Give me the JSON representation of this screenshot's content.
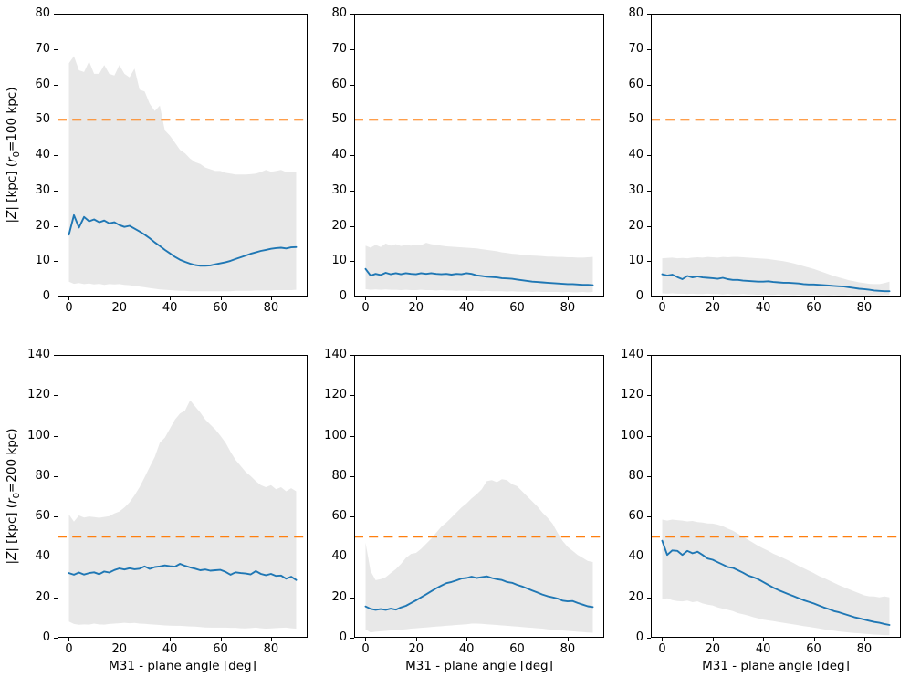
{
  "figure": {
    "background": "#ffffff",
    "colors": {
      "median": "#1f77b4",
      "reference": "#ff7f0e",
      "band": "#e8e8e8",
      "spine": "#000000",
      "text": "#000000"
    }
  },
  "chart_data": {
    "type": "line",
    "description": "2x3 grid of line charts with shaded uncertainty bands, blue median line and dashed orange reference line",
    "x_start": 0,
    "x_step": 2,
    "x_end": 90,
    "xlim": [
      -4.5,
      94.5
    ],
    "xticks": [
      0,
      20,
      40,
      60,
      80
    ],
    "xlabel": "M31 - plane angle [deg]",
    "reference_line_y": 50,
    "grid": false,
    "legend": "none",
    "rows": [
      {
        "ylabel_text": "|Z| [kpc] (r0=100 kpc)",
        "ylabel": [
          {
            "t": "|"
          },
          {
            "t": "Z",
            "style": "i"
          },
          {
            "t": "| [kpc] ("
          },
          {
            "t": "r",
            "style": "i"
          },
          {
            "t": "0",
            "style": "sub"
          },
          {
            "t": "=100 kpc)"
          }
        ],
        "ylim": [
          0,
          80
        ],
        "yticks": [
          0,
          10,
          20,
          30,
          40,
          50,
          60,
          70,
          80
        ]
      },
      {
        "ylabel_text": "|Z| [kpc] (r0=200 kpc)",
        "ylabel": [
          {
            "t": "|"
          },
          {
            "t": "Z",
            "style": "i"
          },
          {
            "t": "| [kpc] ("
          },
          {
            "t": "r",
            "style": "i"
          },
          {
            "t": "0",
            "style": "sub"
          },
          {
            "t": "=200 kpc)"
          }
        ],
        "ylim": [
          0,
          140
        ],
        "yticks": [
          0,
          20,
          40,
          60,
          80,
          100,
          120,
          140
        ]
      }
    ],
    "panels": [
      {
        "id": "r0c0",
        "row": 0,
        "col": 0,
        "median": [
          17.5,
          23.0,
          19.5,
          22.5,
          21.3,
          21.8,
          21.0,
          21.5,
          20.7,
          21.0,
          20.2,
          19.7,
          20.0,
          19.2,
          18.4,
          17.5,
          16.5,
          15.3,
          14.3,
          13.2,
          12.2,
          11.2,
          10.4,
          9.8,
          9.3,
          8.9,
          8.7,
          8.7,
          8.8,
          9.1,
          9.4,
          9.7,
          10.1,
          10.6,
          11.1,
          11.6,
          12.1,
          12.5,
          12.9,
          13.2,
          13.5,
          13.7,
          13.8,
          13.6,
          13.9,
          14.0
        ],
        "band_upper": [
          66.0,
          68.0,
          64.0,
          63.5,
          66.5,
          63.0,
          63.0,
          65.5,
          63.0,
          62.5,
          65.5,
          63.0,
          62.0,
          64.5,
          58.5,
          58.0,
          54.5,
          52.5,
          54.0,
          47.0,
          45.5,
          43.5,
          41.5,
          40.5,
          39.0,
          38.0,
          37.5,
          36.5,
          36.0,
          35.5,
          35.5,
          35.0,
          34.8,
          34.5,
          34.5,
          34.5,
          34.6,
          34.8,
          35.2,
          35.8,
          35.3,
          35.5,
          35.8,
          35.2,
          35.3,
          35.2
        ],
        "band_lower": [
          4.2,
          3.6,
          3.8,
          3.5,
          3.7,
          3.4,
          3.6,
          3.3,
          3.5,
          3.4,
          3.5,
          3.3,
          3.2,
          3.0,
          2.8,
          2.6,
          2.4,
          2.2,
          2.0,
          1.9,
          1.8,
          1.7,
          1.6,
          1.6,
          1.5,
          1.5,
          1.5,
          1.5,
          1.5,
          1.5,
          1.5,
          1.5,
          1.5,
          1.6,
          1.6,
          1.6,
          1.6,
          1.7,
          1.7,
          1.7,
          1.7,
          1.8,
          1.8,
          1.8,
          1.8,
          1.9
        ]
      },
      {
        "id": "r0c1",
        "row": 0,
        "col": 1,
        "median": [
          7.8,
          5.9,
          6.4,
          6.1,
          6.7,
          6.3,
          6.6,
          6.3,
          6.6,
          6.4,
          6.3,
          6.6,
          6.4,
          6.6,
          6.4,
          6.3,
          6.4,
          6.2,
          6.4,
          6.3,
          6.6,
          6.4,
          6.0,
          5.8,
          5.6,
          5.5,
          5.4,
          5.2,
          5.1,
          5.0,
          4.8,
          4.6,
          4.4,
          4.2,
          4.1,
          4.0,
          3.9,
          3.8,
          3.7,
          3.6,
          3.5,
          3.5,
          3.4,
          3.3,
          3.3,
          3.2
        ],
        "band_upper": [
          14.4,
          13.8,
          14.6,
          14.0,
          15.0,
          14.4,
          14.8,
          14.3,
          14.6,
          14.4,
          14.7,
          14.5,
          15.2,
          14.8,
          14.6,
          14.4,
          14.2,
          14.1,
          14.0,
          13.9,
          13.8,
          13.7,
          13.6,
          13.4,
          13.2,
          13.0,
          12.8,
          12.5,
          12.3,
          12.1,
          12.0,
          11.8,
          11.7,
          11.6,
          11.5,
          11.4,
          11.3,
          11.3,
          11.2,
          11.2,
          11.1,
          11.1,
          11.0,
          11.0,
          11.1,
          11.2
        ],
        "band_lower": [
          2.1,
          1.9,
          2.0,
          1.9,
          2.0,
          1.9,
          1.9,
          1.8,
          1.9,
          1.8,
          1.8,
          1.9,
          1.8,
          1.8,
          1.7,
          1.8,
          1.7,
          1.7,
          1.6,
          1.7,
          1.6,
          1.6,
          1.6,
          1.5,
          1.6,
          1.5,
          1.5,
          1.5,
          1.4,
          1.5,
          1.4,
          1.4,
          1.4,
          1.3,
          1.4,
          1.3,
          1.3,
          1.3,
          1.3,
          1.2,
          1.3,
          1.2,
          1.2,
          1.3,
          1.2,
          1.3
        ]
      },
      {
        "id": "r0c2",
        "row": 0,
        "col": 2,
        "median": [
          6.3,
          5.9,
          6.2,
          5.5,
          4.9,
          5.8,
          5.4,
          5.7,
          5.4,
          5.3,
          5.2,
          5.0,
          5.3,
          4.9,
          4.7,
          4.7,
          4.5,
          4.4,
          4.3,
          4.2,
          4.2,
          4.3,
          4.1,
          4.0,
          3.9,
          3.9,
          3.8,
          3.7,
          3.5,
          3.4,
          3.4,
          3.3,
          3.2,
          3.1,
          3.0,
          2.9,
          2.8,
          2.6,
          2.4,
          2.2,
          2.1,
          1.9,
          1.7,
          1.6,
          1.5,
          1.5
        ],
        "band_upper": [
          10.8,
          10.9,
          11.0,
          10.8,
          10.9,
          10.8,
          11.0,
          11.1,
          11.0,
          11.2,
          11.1,
          11.0,
          11.2,
          11.1,
          11.2,
          11.2,
          11.1,
          11.0,
          10.9,
          10.8,
          10.7,
          10.6,
          10.4,
          10.2,
          10.0,
          9.7,
          9.4,
          9.0,
          8.6,
          8.2,
          7.8,
          7.3,
          6.8,
          6.3,
          5.8,
          5.4,
          5.0,
          4.6,
          4.3,
          4.0,
          3.8,
          3.6,
          3.5,
          3.5,
          3.8,
          4.2
        ],
        "band_lower": [
          0.9,
          0.8,
          0.9,
          0.8,
          0.8,
          0.7,
          0.8,
          0.7,
          0.7,
          0.8,
          0.7,
          0.7,
          0.6,
          0.7,
          0.6,
          0.6,
          0.7,
          0.6,
          0.6,
          0.5,
          0.6,
          0.5,
          0.5,
          0.6,
          0.5,
          0.5,
          0.4,
          0.5,
          0.4,
          0.4,
          0.5,
          0.4,
          0.4,
          0.3,
          0.4,
          0.3,
          0.3,
          0.4,
          0.3,
          0.3,
          0.3,
          0.3,
          0.4,
          0.3,
          0.4,
          0.4
        ]
      },
      {
        "id": "r1c0",
        "row": 1,
        "col": 0,
        "median": [
          32.0,
          31.2,
          32.3,
          31.3,
          32.0,
          32.4,
          31.5,
          32.8,
          32.3,
          33.5,
          34.3,
          33.8,
          34.4,
          33.9,
          34.2,
          35.3,
          34.1,
          35.0,
          35.3,
          35.8,
          35.4,
          35.2,
          36.6,
          35.6,
          34.8,
          34.2,
          33.4,
          33.8,
          33.2,
          33.4,
          33.6,
          32.6,
          31.2,
          32.4,
          32.0,
          31.8,
          31.4,
          33.0,
          31.6,
          31.0,
          31.6,
          30.6,
          30.8,
          29.2,
          30.2,
          28.6
        ],
        "band_upper": [
          61.0,
          57.5,
          60.5,
          59.5,
          60.0,
          59.7,
          59.4,
          59.8,
          60.2,
          61.5,
          62.5,
          64.5,
          67.0,
          70.5,
          74.5,
          79.5,
          84.5,
          89.5,
          96.5,
          99.0,
          103.5,
          108.0,
          111.0,
          112.5,
          117.5,
          114.5,
          111.5,
          108.0,
          105.5,
          103.0,
          100.0,
          96.5,
          92.0,
          88.0,
          85.0,
          82.0,
          80.0,
          77.5,
          75.5,
          74.5,
          75.5,
          73.5,
          74.5,
          72.5,
          74.0,
          72.5
        ],
        "band_lower": [
          8.0,
          6.8,
          6.4,
          6.6,
          6.5,
          7.0,
          6.6,
          6.5,
          6.8,
          7.0,
          7.2,
          7.4,
          7.2,
          7.3,
          7.0,
          6.9,
          6.7,
          6.5,
          6.3,
          6.1,
          6.0,
          5.9,
          5.9,
          5.8,
          5.6,
          5.5,
          5.3,
          5.1,
          5.0,
          5.0,
          5.0,
          5.0,
          4.9,
          4.9,
          4.7,
          4.6,
          4.8,
          5.0,
          4.7,
          4.5,
          4.6,
          4.8,
          4.9,
          5.0,
          4.7,
          4.5
        ]
      },
      {
        "id": "r1c1",
        "row": 1,
        "col": 1,
        "median": [
          15.5,
          14.3,
          13.8,
          14.2,
          13.8,
          14.4,
          13.9,
          15.0,
          15.8,
          17.2,
          18.5,
          20.0,
          21.5,
          23.0,
          24.5,
          25.8,
          27.0,
          27.6,
          28.4,
          29.3,
          29.6,
          30.2,
          29.6,
          30.0,
          30.4,
          29.6,
          29.0,
          28.6,
          27.6,
          27.2,
          26.2,
          25.4,
          24.4,
          23.4,
          22.4,
          21.4,
          20.6,
          20.0,
          19.4,
          18.4,
          18.0,
          18.2,
          17.2,
          16.4,
          15.6,
          15.2
        ],
        "band_upper": [
          47.0,
          33.0,
          28.5,
          29.0,
          30.0,
          32.0,
          34.0,
          36.5,
          39.5,
          41.5,
          42.0,
          44.0,
          46.5,
          49.0,
          52.0,
          55.0,
          57.0,
          59.5,
          62.0,
          64.5,
          66.5,
          69.0,
          71.0,
          73.5,
          77.5,
          78.0,
          77.0,
          78.5,
          78.0,
          76.0,
          75.0,
          72.5,
          70.0,
          67.5,
          65.0,
          62.0,
          59.5,
          56.5,
          52.0,
          48.0,
          45.0,
          43.0,
          41.0,
          39.5,
          38.0,
          37.5
        ],
        "band_lower": [
          4.2,
          2.6,
          3.0,
          3.2,
          3.4,
          3.6,
          3.8,
          4.0,
          4.2,
          4.5,
          4.7,
          4.9,
          5.1,
          5.3,
          5.5,
          5.7,
          5.9,
          6.1,
          6.3,
          6.5,
          6.7,
          7.0,
          7.0,
          6.9,
          6.7,
          6.5,
          6.3,
          6.1,
          5.9,
          5.7,
          5.5,
          5.3,
          5.1,
          4.9,
          4.7,
          4.5,
          4.2,
          4.0,
          3.8,
          3.6,
          3.4,
          3.2,
          3.0,
          2.8,
          2.6,
          2.5
        ]
      },
      {
        "id": "r1c2",
        "row": 1,
        "col": 2,
        "median": [
          48.0,
          41.0,
          43.2,
          43.0,
          41.0,
          43.0,
          41.8,
          42.6,
          41.0,
          39.2,
          38.6,
          37.4,
          36.2,
          35.0,
          34.6,
          33.4,
          32.2,
          30.8,
          30.0,
          29.0,
          27.6,
          26.2,
          24.8,
          23.6,
          22.6,
          21.6,
          20.6,
          19.6,
          18.6,
          17.8,
          17.0,
          16.0,
          15.0,
          14.2,
          13.2,
          12.6,
          11.8,
          11.0,
          10.2,
          9.6,
          9.0,
          8.4,
          7.8,
          7.4,
          6.8,
          6.3
        ],
        "band_upper": [
          58.5,
          58.0,
          58.5,
          58.2,
          58.0,
          57.6,
          57.8,
          57.2,
          57.0,
          56.6,
          56.5,
          56.0,
          55.2,
          54.0,
          53.0,
          51.5,
          50.0,
          48.5,
          47.0,
          45.5,
          44.2,
          43.0,
          41.6,
          40.5,
          39.4,
          38.2,
          37.0,
          35.6,
          34.4,
          33.2,
          32.0,
          30.6,
          29.6,
          28.4,
          27.2,
          26.0,
          25.0,
          24.0,
          23.0,
          22.0,
          21.0,
          20.5,
          20.4,
          20.0,
          20.5,
          20.0
        ],
        "band_lower": [
          19.0,
          19.5,
          18.6,
          18.2,
          18.0,
          18.4,
          17.6,
          18.0,
          17.0,
          16.4,
          16.0,
          15.0,
          14.4,
          13.8,
          13.2,
          12.2,
          11.6,
          11.0,
          10.2,
          9.6,
          9.0,
          8.6,
          8.2,
          7.8,
          7.4,
          7.0,
          6.6,
          6.2,
          5.8,
          5.4,
          5.0,
          4.6,
          4.2,
          3.8,
          3.5,
          3.1,
          2.9,
          2.6,
          2.4,
          2.2,
          2.0,
          1.8,
          1.6,
          1.5,
          1.3,
          1.2
        ]
      }
    ]
  }
}
